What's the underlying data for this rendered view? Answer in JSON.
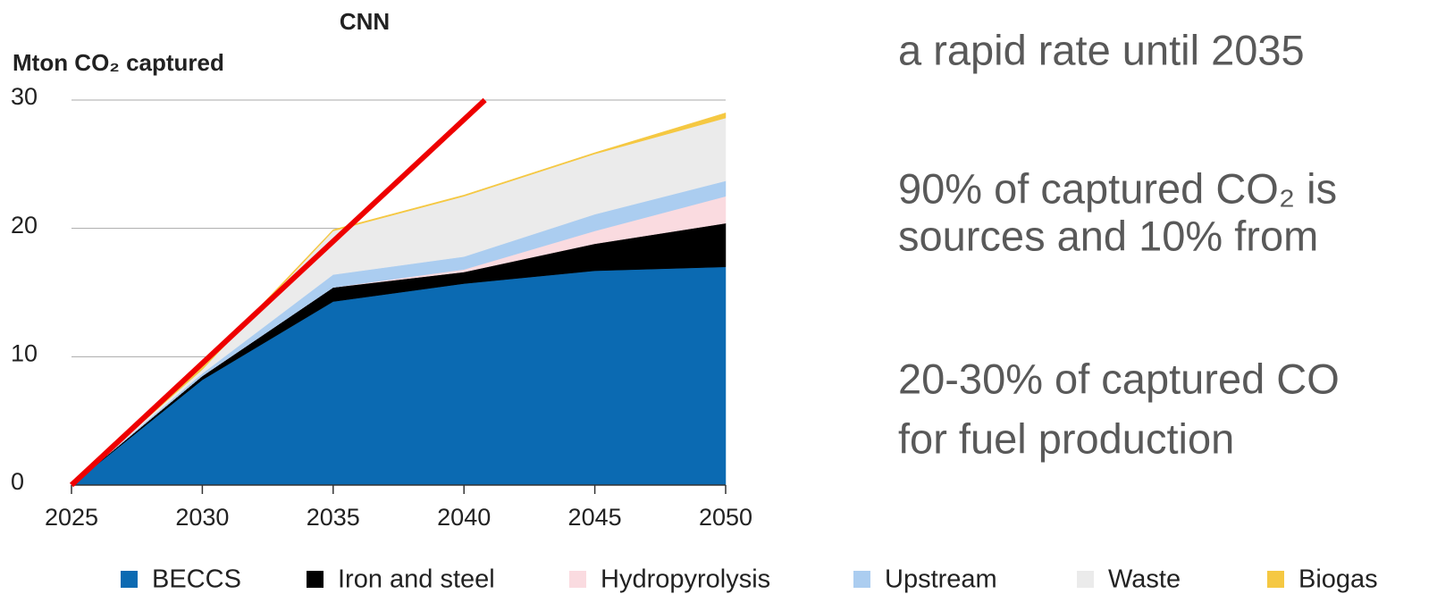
{
  "chart_data": {
    "type": "stacked_area",
    "title": "CNN",
    "y_label": "Mton CO₂ captured",
    "x": [
      2025,
      2030,
      2035,
      2040,
      2045,
      2050
    ],
    "xlim": [
      2025,
      2050
    ],
    "xticks": [
      2025,
      2030,
      2035,
      2040,
      2045,
      2050
    ],
    "ylim": [
      0,
      30
    ],
    "yticks": [
      0,
      10,
      20,
      30
    ],
    "grid": true,
    "legend": "bottom",
    "series": [
      {
        "name": "BECCS",
        "color": "#0b6ab2",
        "values": [
          0,
          8.2,
          14.3,
          15.7,
          16.7,
          17.0
        ]
      },
      {
        "name": "Iron and steel",
        "color": "#000000",
        "values": [
          0,
          0.3,
          1.1,
          0.9,
          2.1,
          3.4
        ]
      },
      {
        "name": "Hydropyrolysis",
        "color": "#fadbe0",
        "values": [
          0,
          0,
          0,
          0.2,
          1.0,
          2.1
        ]
      },
      {
        "name": "Upstream",
        "color": "#abcdf0",
        "values": [
          0,
          0.2,
          1.0,
          1.0,
          1.3,
          1.2
        ]
      },
      {
        "name": "Waste",
        "color": "#ebebeb",
        "values": [
          0,
          0.3,
          3.4,
          4.7,
          4.7,
          4.9
        ]
      },
      {
        "name": "Biogas",
        "color": "#f5c842",
        "values": [
          0,
          0.2,
          0.1,
          0.1,
          0.1,
          0.4
        ]
      }
    ],
    "trend_line": {
      "color": "#ee0000",
      "x": [
        2025,
        2040.8
      ],
      "values": [
        0,
        30
      ]
    }
  },
  "side_text": [
    "a rapid rate until 2035",
    "90% of captured CO₂ is",
    "sources and 10% from",
    "20-30% of captured CO",
    "for fuel production"
  ]
}
